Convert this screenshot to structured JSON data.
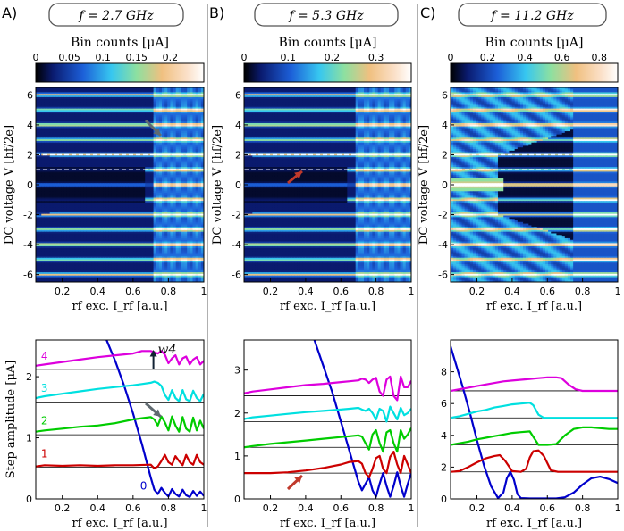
{
  "figure": {
    "colors": {
      "panel_divider": "#b0b0b0",
      "arrow_gray": "#606a70",
      "arrow_red": "#c0392b",
      "step_colors": [
        "#0000cc",
        "#cc0000",
        "#00cc00",
        "#00e0e0",
        "#dd00dd"
      ]
    }
  },
  "chart_data": [
    {
      "panel": "A)",
      "type": "heatmap",
      "title": "f = 2.7 GHz",
      "colorbar_label": "Bin counts [μA]",
      "colorbar_range": [
        0,
        0.25
      ],
      "colorbar_ticks": [
        "0",
        "0.05",
        "0.1",
        "0.15",
        "0.2"
      ],
      "colorbar_tick_values": [
        0,
        0.05,
        0.1,
        0.15,
        0.2
      ],
      "xlabel": "rf exc.  I_rf  [a.u.]",
      "ylabel": "DC voltage  V  [hf/2e]",
      "xlim": [
        0.05,
        1.0
      ],
      "ylim": [
        -6.5,
        6.5
      ],
      "xticks": [
        "0.2",
        "0.4",
        "0.6",
        "0.8",
        "1"
      ],
      "xtick_values": [
        0.2,
        0.4,
        0.6,
        0.8,
        1.0
      ],
      "yticks": [
        "-6",
        "-4",
        "-2",
        "0",
        "2",
        "4",
        "6"
      ],
      "ytick_values": [
        -6,
        -4,
        -2,
        0,
        2,
        4,
        6
      ],
      "dashed_lines_y": [
        1.0,
        2.0
      ],
      "onset": 0.72
    },
    {
      "panel": "B)",
      "type": "heatmap",
      "title": "f = 5.3 GHz",
      "colorbar_label": "Bin counts [μA]",
      "colorbar_range": [
        0,
        0.38
      ],
      "colorbar_ticks": [
        "0",
        "0.1",
        "0.2",
        "0.3"
      ],
      "colorbar_tick_values": [
        0,
        0.1,
        0.2,
        0.3
      ],
      "xlabel": "rf exc.  I_rf  [a.u.]",
      "ylabel": "DC voltage  V  [hf/2e]",
      "xlim": [
        0.05,
        1.0
      ],
      "ylim": [
        -6.5,
        6.5
      ],
      "xticks": [
        "0.2",
        "0.4",
        "0.6",
        "0.8",
        "1"
      ],
      "xtick_values": [
        0.2,
        0.4,
        0.6,
        0.8,
        1.0
      ],
      "yticks": [
        "-6",
        "-4",
        "-2",
        "0",
        "2",
        "4",
        "6"
      ],
      "ytick_values": [
        -6,
        -4,
        -2,
        0,
        2,
        4,
        6
      ],
      "dashed_lines_y": [
        1.0,
        2.0
      ],
      "onset": 0.68
    },
    {
      "panel": "C)",
      "type": "heatmap",
      "title": "f = 11.2 GHz",
      "colorbar_label": "Bin counts [μA]",
      "colorbar_range": [
        0,
        0.9
      ],
      "colorbar_ticks": [
        "0",
        "0.2",
        "0.4",
        "0.6",
        "0.8"
      ],
      "colorbar_tick_values": [
        0,
        0.2,
        0.4,
        0.6,
        0.8
      ],
      "xlabel": "rf exc.  I_rf  [a.u.]",
      "ylabel": "DC voltage  V  [hf/2e]",
      "xlim": [
        0.05,
        1.0
      ],
      "ylim": [
        -6.5,
        6.5
      ],
      "xticks": [
        "0.2",
        "0.4",
        "0.6",
        "0.8",
        "1"
      ],
      "xtick_values": [
        0.2,
        0.4,
        0.6,
        0.8,
        1.0
      ],
      "yticks": [
        "-6",
        "-4",
        "-2",
        "0",
        "2",
        "4",
        "6"
      ],
      "ytick_values": [
        -6,
        -4,
        -2,
        0,
        2,
        4,
        6
      ],
      "dashed_lines_y": [
        1.0,
        2.0
      ],
      "onset": 0.28
    },
    {
      "panel": "A)",
      "type": "line",
      "xlabel": "rf exc.  I_rf  [a.u.]",
      "ylabel": "Step amplitude [μA]",
      "xlim": [
        0.05,
        1.0
      ],
      "ylim": [
        0,
        2.6
      ],
      "xticks": [
        "0.2",
        "0.4",
        "0.6",
        "0.8",
        "1"
      ],
      "xtick_values": [
        0.2,
        0.4,
        0.6,
        0.8,
        1.0
      ],
      "yticks": [
        "0",
        "1",
        "2"
      ],
      "ytick_values": [
        0,
        1,
        2
      ],
      "baselines": [
        0.52,
        1.05,
        1.57,
        2.12
      ],
      "step_labels": [
        {
          "text": "0",
          "x": 0.64,
          "y": 0.15
        },
        {
          "text": "1",
          "x": 0.08,
          "y": 0.68
        },
        {
          "text": "2",
          "x": 0.08,
          "y": 1.22
        },
        {
          "text": "3",
          "x": 0.08,
          "y": 1.75
        },
        {
          "text": "4",
          "x": 0.08,
          "y": 2.28
        }
      ],
      "annotation": {
        "text": "w4",
        "x": 0.74,
        "y": 2.38
      },
      "series": [
        {
          "name": "0",
          "color": "#0000cc",
          "x": [
            0.45,
            0.5,
            0.55,
            0.6,
            0.65,
            0.7,
            0.72,
            0.74,
            0.76,
            0.78,
            0.8,
            0.82,
            0.84,
            0.86,
            0.88,
            0.9,
            0.92,
            0.94,
            0.96,
            0.98,
            1.0
          ],
          "y": [
            2.6,
            2.25,
            1.85,
            1.4,
            0.9,
            0.35,
            0.15,
            0.08,
            0.18,
            0.1,
            0.04,
            0.16,
            0.08,
            0.04,
            0.15,
            0.06,
            0.03,
            0.13,
            0.05,
            0.12,
            0.05
          ]
        },
        {
          "name": "1",
          "color": "#cc0000",
          "x": [
            0.05,
            0.1,
            0.2,
            0.3,
            0.4,
            0.5,
            0.6,
            0.7,
            0.72,
            0.74,
            0.76,
            0.78,
            0.8,
            0.82,
            0.84,
            0.86,
            0.88,
            0.9,
            0.92,
            0.94,
            0.96,
            0.98,
            1.0
          ],
          "y": [
            0.53,
            0.55,
            0.54,
            0.55,
            0.54,
            0.55,
            0.55,
            0.56,
            0.5,
            0.53,
            0.62,
            0.72,
            0.6,
            0.56,
            0.7,
            0.62,
            0.55,
            0.72,
            0.6,
            0.56,
            0.72,
            0.6,
            0.56
          ]
        },
        {
          "name": "2",
          "color": "#00cc00",
          "x": [
            0.05,
            0.1,
            0.2,
            0.3,
            0.4,
            0.5,
            0.6,
            0.65,
            0.7,
            0.72,
            0.74,
            0.76,
            0.78,
            0.8,
            0.82,
            0.84,
            0.86,
            0.88,
            0.9,
            0.92,
            0.94,
            0.96,
            0.98,
            1.0
          ],
          "y": [
            1.1,
            1.12,
            1.15,
            1.18,
            1.2,
            1.24,
            1.3,
            1.32,
            1.34,
            1.3,
            1.2,
            1.35,
            1.25,
            1.12,
            1.35,
            1.2,
            1.1,
            1.34,
            1.15,
            1.1,
            1.33,
            1.12,
            1.28,
            1.15
          ]
        },
        {
          "name": "3",
          "color": "#00e0e0",
          "x": [
            0.05,
            0.1,
            0.2,
            0.3,
            0.4,
            0.5,
            0.6,
            0.65,
            0.7,
            0.72,
            0.74,
            0.76,
            0.78,
            0.8,
            0.82,
            0.84,
            0.86,
            0.88,
            0.9,
            0.92,
            0.94,
            0.96,
            0.98,
            1.0
          ],
          "y": [
            1.65,
            1.68,
            1.72,
            1.76,
            1.8,
            1.83,
            1.86,
            1.88,
            1.9,
            1.92,
            1.9,
            1.85,
            1.7,
            1.62,
            1.78,
            1.65,
            1.6,
            1.78,
            1.63,
            1.6,
            1.77,
            1.65,
            1.6,
            1.72
          ]
        },
        {
          "name": "4",
          "color": "#dd00dd",
          "x": [
            0.05,
            0.1,
            0.2,
            0.3,
            0.4,
            0.5,
            0.6,
            0.65,
            0.7,
            0.72,
            0.74,
            0.76,
            0.78,
            0.8,
            0.82,
            0.84,
            0.86,
            0.88,
            0.9,
            0.92,
            0.94,
            0.96,
            0.98,
            1.0
          ],
          "y": [
            2.18,
            2.2,
            2.24,
            2.28,
            2.32,
            2.35,
            2.38,
            2.42,
            2.42,
            2.4,
            2.38,
            2.42,
            2.36,
            2.22,
            2.3,
            2.35,
            2.2,
            2.3,
            2.33,
            2.2,
            2.28,
            2.32,
            2.2,
            2.26
          ]
        }
      ]
    },
    {
      "panel": "B)",
      "type": "line",
      "xlabel": "rf exc.  I_rf  [a.u.]",
      "ylabel": "",
      "xlim": [
        0.05,
        1.0
      ],
      "ylim": [
        0,
        3.7
      ],
      "xticks": [
        "0.2",
        "0.4",
        "0.6",
        "0.8",
        "1"
      ],
      "xtick_values": [
        0.2,
        0.4,
        0.6,
        0.8,
        1.0
      ],
      "yticks": [
        "0",
        "1",
        "2",
        "3"
      ],
      "ytick_values": [
        0,
        1,
        2,
        3
      ],
      "baselines": [
        0.6,
        1.2,
        1.8,
        2.4
      ],
      "series": [
        {
          "name": "0",
          "color": "#0000cc",
          "x": [
            0.45,
            0.5,
            0.55,
            0.6,
            0.65,
            0.7,
            0.72,
            0.74,
            0.76,
            0.78,
            0.8,
            0.82,
            0.84,
            0.86,
            0.88,
            0.9,
            0.92,
            0.94,
            0.96,
            0.98,
            1.0
          ],
          "y": [
            3.7,
            3.1,
            2.5,
            1.8,
            1.1,
            0.4,
            0.2,
            0.35,
            0.5,
            0.2,
            0.05,
            0.35,
            0.6,
            0.3,
            0.05,
            0.3,
            0.62,
            0.3,
            0.05,
            0.35,
            0.6
          ]
        },
        {
          "name": "1",
          "color": "#cc0000",
          "x": [
            0.05,
            0.1,
            0.2,
            0.3,
            0.4,
            0.5,
            0.6,
            0.65,
            0.7,
            0.72,
            0.74,
            0.76,
            0.78,
            0.8,
            0.82,
            0.84,
            0.86,
            0.88,
            0.9,
            0.92,
            0.94,
            0.96,
            0.98,
            1.0
          ],
          "y": [
            0.6,
            0.6,
            0.6,
            0.62,
            0.66,
            0.72,
            0.8,
            0.86,
            0.88,
            0.82,
            0.6,
            0.5,
            0.7,
            0.95,
            1.0,
            0.7,
            0.6,
            0.98,
            1.1,
            0.8,
            0.6,
            1.0,
            0.8,
            0.6
          ]
        },
        {
          "name": "2",
          "color": "#00cc00",
          "x": [
            0.05,
            0.1,
            0.2,
            0.3,
            0.4,
            0.5,
            0.6,
            0.65,
            0.7,
            0.72,
            0.74,
            0.76,
            0.78,
            0.8,
            0.82,
            0.84,
            0.86,
            0.88,
            0.9,
            0.92,
            0.94,
            0.96,
            0.98,
            1.0
          ],
          "y": [
            1.2,
            1.23,
            1.28,
            1.32,
            1.36,
            1.4,
            1.44,
            1.46,
            1.48,
            1.45,
            1.3,
            1.15,
            1.5,
            1.6,
            1.3,
            1.1,
            1.55,
            1.6,
            1.3,
            1.1,
            1.6,
            1.4,
            1.5,
            1.65
          ]
        },
        {
          "name": "3",
          "color": "#00e0e0",
          "x": [
            0.05,
            0.1,
            0.2,
            0.3,
            0.4,
            0.5,
            0.6,
            0.65,
            0.7,
            0.72,
            0.74,
            0.76,
            0.78,
            0.8,
            0.82,
            0.84,
            0.86,
            0.88,
            0.9,
            0.92,
            0.94,
            0.96,
            0.98,
            1.0
          ],
          "y": [
            1.86,
            1.9,
            1.94,
            1.98,
            2.02,
            2.05,
            2.08,
            2.1,
            2.12,
            2.08,
            2.05,
            2.1,
            2.0,
            1.85,
            2.1,
            2.05,
            1.8,
            2.15,
            2.0,
            1.85,
            2.12,
            1.95,
            2.0,
            2.1
          ]
        },
        {
          "name": "4",
          "color": "#dd00dd",
          "x": [
            0.05,
            0.1,
            0.2,
            0.3,
            0.4,
            0.5,
            0.6,
            0.65,
            0.7,
            0.72,
            0.74,
            0.76,
            0.78,
            0.8,
            0.82,
            0.84,
            0.86,
            0.88,
            0.9,
            0.92,
            0.94,
            0.96,
            0.98,
            1.0
          ],
          "y": [
            2.46,
            2.5,
            2.55,
            2.6,
            2.65,
            2.68,
            2.72,
            2.74,
            2.76,
            2.8,
            2.78,
            2.7,
            2.78,
            2.82,
            2.5,
            2.4,
            2.78,
            2.85,
            2.4,
            2.3,
            2.85,
            2.6,
            2.6,
            2.75
          ]
        }
      ]
    },
    {
      "panel": "C)",
      "type": "line",
      "xlabel": "rf exc.  I_rf  [a.u.]",
      "ylabel": "",
      "xlim": [
        0.05,
        1.0
      ],
      "ylim": [
        0,
        10
      ],
      "xticks": [
        "0.2",
        "0.4",
        "0.6",
        "0.8",
        "1"
      ],
      "xtick_values": [
        0.2,
        0.4,
        0.6,
        0.8,
        1.0
      ],
      "yticks": [
        "0",
        "2",
        "4",
        "6",
        "8"
      ],
      "ytick_values": [
        0,
        2,
        4,
        6,
        8
      ],
      "baselines": [
        1.7,
        3.4,
        5.1,
        6.8
      ],
      "series": [
        {
          "name": "0",
          "color": "#0000cc",
          "x": [
            0.05,
            0.08,
            0.12,
            0.16,
            0.2,
            0.24,
            0.28,
            0.32,
            0.35,
            0.37,
            0.39,
            0.41,
            0.43,
            0.45,
            0.5,
            0.55,
            0.6,
            0.65,
            0.7,
            0.75,
            0.8,
            0.85,
            0.9,
            0.95,
            1.0
          ],
          "y": [
            9.6,
            8.5,
            7.0,
            5.4,
            3.7,
            2.1,
            0.8,
            0.05,
            0.4,
            1.3,
            1.7,
            1.2,
            0.3,
            0.05,
            0.03,
            0.03,
            0.03,
            0.03,
            0.1,
            0.4,
            0.9,
            1.3,
            1.4,
            1.25,
            1.0
          ]
        },
        {
          "name": "1",
          "color": "#cc0000",
          "x": [
            0.05,
            0.1,
            0.15,
            0.2,
            0.25,
            0.3,
            0.33,
            0.36,
            0.4,
            0.45,
            0.48,
            0.5,
            0.52,
            0.55,
            0.58,
            0.62,
            0.66,
            0.7,
            0.8,
            0.9,
            1.0
          ],
          "y": [
            1.7,
            1.75,
            2.0,
            2.3,
            2.55,
            2.7,
            2.75,
            2.4,
            1.75,
            1.7,
            1.9,
            2.6,
            3.0,
            3.05,
            2.7,
            1.8,
            1.7,
            1.7,
            1.7,
            1.7,
            1.7
          ]
        },
        {
          "name": "2",
          "color": "#00cc00",
          "x": [
            0.05,
            0.1,
            0.15,
            0.2,
            0.25,
            0.3,
            0.35,
            0.4,
            0.45,
            0.5,
            0.55,
            0.6,
            0.65,
            0.7,
            0.75,
            0.8,
            0.85,
            0.9,
            0.95,
            1.0
          ],
          "y": [
            3.4,
            3.5,
            3.6,
            3.75,
            3.85,
            3.95,
            4.05,
            4.15,
            4.2,
            4.25,
            3.4,
            3.4,
            3.45,
            4.0,
            4.4,
            4.5,
            4.5,
            4.45,
            4.4,
            4.4
          ]
        },
        {
          "name": "3",
          "color": "#00e0e0",
          "x": [
            0.05,
            0.1,
            0.15,
            0.2,
            0.25,
            0.3,
            0.35,
            0.4,
            0.45,
            0.5,
            0.52,
            0.55,
            0.58,
            0.6,
            0.65,
            0.7,
            0.8,
            0.9,
            1.0
          ],
          "y": [
            5.1,
            5.2,
            5.35,
            5.5,
            5.6,
            5.75,
            5.85,
            5.95,
            6.0,
            6.05,
            5.9,
            5.3,
            5.1,
            5.1,
            5.1,
            5.1,
            5.1,
            5.1,
            5.1
          ]
        },
        {
          "name": "4",
          "color": "#dd00dd",
          "x": [
            0.05,
            0.1,
            0.15,
            0.2,
            0.25,
            0.3,
            0.35,
            0.4,
            0.45,
            0.5,
            0.55,
            0.6,
            0.65,
            0.68,
            0.72,
            0.76,
            0.8,
            0.9,
            1.0
          ],
          "y": [
            6.8,
            6.9,
            7.0,
            7.1,
            7.2,
            7.3,
            7.4,
            7.45,
            7.5,
            7.55,
            7.6,
            7.65,
            7.65,
            7.6,
            7.2,
            6.9,
            6.8,
            6.8,
            6.8
          ]
        }
      ]
    }
  ]
}
